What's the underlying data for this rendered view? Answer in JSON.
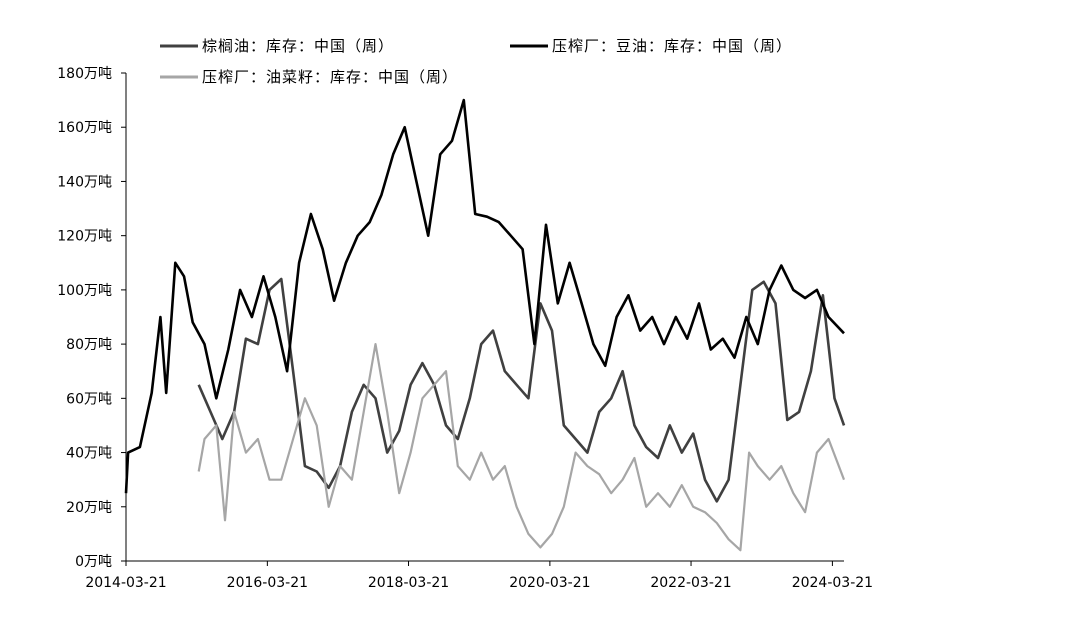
{
  "chart_data": {
    "type": "line",
    "title": "",
    "xlabel": "",
    "ylabel": "",
    "ylim": [
      0,
      180
    ],
    "y_ticks": [
      0,
      20,
      40,
      60,
      80,
      100,
      120,
      140,
      160,
      180
    ],
    "y_unit": "万吨",
    "x_ticks": [
      "2014-03-21",
      "2016-03-21",
      "2018-03-21",
      "2020-03-21",
      "2022-03-21",
      "2024-03-21"
    ],
    "xlim": [
      "2014-03-21",
      "2024-05-20"
    ],
    "grid": false,
    "legend_position": "top",
    "series": [
      {
        "name": "棕榈油：库存：中国（周）",
        "color": "#404040",
        "points": [
          [
            "2015-04-01",
            65
          ],
          [
            "2015-06-01",
            55
          ],
          [
            "2015-08-01",
            45
          ],
          [
            "2015-10-01",
            55
          ],
          [
            "2015-12-01",
            82
          ],
          [
            "2016-02-01",
            80
          ],
          [
            "2016-04-01",
            100
          ],
          [
            "2016-06-01",
            104
          ],
          [
            "2016-08-01",
            70
          ],
          [
            "2016-10-01",
            35
          ],
          [
            "2016-12-01",
            33
          ],
          [
            "2017-02-01",
            27
          ],
          [
            "2017-04-01",
            35
          ],
          [
            "2017-06-01",
            55
          ],
          [
            "2017-08-01",
            65
          ],
          [
            "2017-10-01",
            60
          ],
          [
            "2017-12-01",
            40
          ],
          [
            "2018-02-01",
            48
          ],
          [
            "2018-04-01",
            65
          ],
          [
            "2018-06-01",
            73
          ],
          [
            "2018-08-01",
            65
          ],
          [
            "2018-10-01",
            50
          ],
          [
            "2018-12-01",
            45
          ],
          [
            "2019-02-01",
            60
          ],
          [
            "2019-04-01",
            80
          ],
          [
            "2019-06-01",
            85
          ],
          [
            "2019-08-01",
            70
          ],
          [
            "2019-10-01",
            65
          ],
          [
            "2019-12-01",
            60
          ],
          [
            "2020-02-01",
            95
          ],
          [
            "2020-04-01",
            85
          ],
          [
            "2020-06-01",
            50
          ],
          [
            "2020-08-01",
            45
          ],
          [
            "2020-10-01",
            40
          ],
          [
            "2020-12-01",
            55
          ],
          [
            "2021-02-01",
            60
          ],
          [
            "2021-04-01",
            70
          ],
          [
            "2021-06-01",
            50
          ],
          [
            "2021-08-01",
            42
          ],
          [
            "2021-10-01",
            38
          ],
          [
            "2021-12-01",
            50
          ],
          [
            "2022-02-01",
            40
          ],
          [
            "2022-04-01",
            47
          ],
          [
            "2022-06-01",
            30
          ],
          [
            "2022-08-01",
            22
          ],
          [
            "2022-10-01",
            30
          ],
          [
            "2022-12-01",
            65
          ],
          [
            "2023-02-01",
            100
          ],
          [
            "2023-04-01",
            103
          ],
          [
            "2023-06-01",
            95
          ],
          [
            "2023-08-01",
            52
          ],
          [
            "2023-10-01",
            55
          ],
          [
            "2023-12-01",
            70
          ],
          [
            "2024-02-01",
            98
          ],
          [
            "2024-04-01",
            60
          ],
          [
            "2024-05-20",
            50
          ]
        ]
      },
      {
        "name": "压榨厂：豆油：库存：中国（周）",
        "color": "#000000",
        "points": [
          [
            "2014-03-21",
            25
          ],
          [
            "2014-04-01",
            40
          ],
          [
            "2014-06-01",
            42
          ],
          [
            "2014-08-01",
            62
          ],
          [
            "2014-09-15",
            90
          ],
          [
            "2014-10-15",
            62
          ],
          [
            "2014-12-01",
            110
          ],
          [
            "2015-01-15",
            105
          ],
          [
            "2015-03-01",
            88
          ],
          [
            "2015-05-01",
            80
          ],
          [
            "2015-07-01",
            60
          ],
          [
            "2015-09-01",
            78
          ],
          [
            "2015-11-01",
            100
          ],
          [
            "2016-01-01",
            90
          ],
          [
            "2016-03-01",
            105
          ],
          [
            "2016-05-01",
            90
          ],
          [
            "2016-07-01",
            70
          ],
          [
            "2016-09-01",
            110
          ],
          [
            "2016-11-01",
            128
          ],
          [
            "2017-01-01",
            115
          ],
          [
            "2017-03-01",
            96
          ],
          [
            "2017-05-01",
            110
          ],
          [
            "2017-07-01",
            120
          ],
          [
            "2017-09-01",
            125
          ],
          [
            "2017-11-01",
            135
          ],
          [
            "2018-01-01",
            150
          ],
          [
            "2018-03-01",
            160
          ],
          [
            "2018-05-01",
            140
          ],
          [
            "2018-07-01",
            120
          ],
          [
            "2018-09-01",
            150
          ],
          [
            "2018-11-01",
            155
          ],
          [
            "2019-01-01",
            170
          ],
          [
            "2019-03-01",
            128
          ],
          [
            "2019-05-01",
            127
          ],
          [
            "2019-07-01",
            125
          ],
          [
            "2019-09-01",
            120
          ],
          [
            "2019-11-01",
            115
          ],
          [
            "2020-01-01",
            80
          ],
          [
            "2020-03-01",
            124
          ],
          [
            "2020-05-01",
            95
          ],
          [
            "2020-07-01",
            110
          ],
          [
            "2020-09-01",
            95
          ],
          [
            "2020-11-01",
            80
          ],
          [
            "2021-01-01",
            72
          ],
          [
            "2021-03-01",
            90
          ],
          [
            "2021-05-01",
            98
          ],
          [
            "2021-07-01",
            85
          ],
          [
            "2021-09-01",
            90
          ],
          [
            "2021-11-01",
            80
          ],
          [
            "2022-01-01",
            90
          ],
          [
            "2022-03-01",
            82
          ],
          [
            "2022-05-01",
            95
          ],
          [
            "2022-07-01",
            78
          ],
          [
            "2022-09-01",
            82
          ],
          [
            "2022-11-01",
            75
          ],
          [
            "2023-01-01",
            90
          ],
          [
            "2023-03-01",
            80
          ],
          [
            "2023-05-01",
            100
          ],
          [
            "2023-07-01",
            109
          ],
          [
            "2023-09-01",
            100
          ],
          [
            "2023-11-01",
            97
          ],
          [
            "2024-01-01",
            100
          ],
          [
            "2024-03-01",
            90
          ],
          [
            "2024-05-20",
            84
          ]
        ]
      },
      {
        "name": "压榨厂：油菜籽：库存：中国（周）",
        "color": "#a6a6a6",
        "points": [
          [
            "2015-04-01",
            33
          ],
          [
            "2015-05-01",
            45
          ],
          [
            "2015-07-01",
            50
          ],
          [
            "2015-08-15",
            15
          ],
          [
            "2015-10-01",
            55
          ],
          [
            "2015-12-01",
            40
          ],
          [
            "2016-02-01",
            45
          ],
          [
            "2016-04-01",
            30
          ],
          [
            "2016-06-01",
            30
          ],
          [
            "2016-08-01",
            45
          ],
          [
            "2016-10-01",
            60
          ],
          [
            "2016-12-01",
            50
          ],
          [
            "2017-02-01",
            20
          ],
          [
            "2017-04-01",
            35
          ],
          [
            "2017-06-01",
            30
          ],
          [
            "2017-08-01",
            55
          ],
          [
            "2017-10-01",
            80
          ],
          [
            "2017-12-01",
            55
          ],
          [
            "2018-02-01",
            25
          ],
          [
            "2018-04-01",
            40
          ],
          [
            "2018-06-01",
            60
          ],
          [
            "2018-08-01",
            65
          ],
          [
            "2018-10-01",
            70
          ],
          [
            "2018-12-01",
            35
          ],
          [
            "2019-02-01",
            30
          ],
          [
            "2019-04-01",
            40
          ],
          [
            "2019-06-01",
            30
          ],
          [
            "2019-08-01",
            35
          ],
          [
            "2019-10-01",
            20
          ],
          [
            "2019-12-01",
            10
          ],
          [
            "2020-02-01",
            5
          ],
          [
            "2020-04-01",
            10
          ],
          [
            "2020-06-01",
            20
          ],
          [
            "2020-08-01",
            40
          ],
          [
            "2020-10-01",
            35
          ],
          [
            "2020-12-01",
            32
          ],
          [
            "2021-02-01",
            25
          ],
          [
            "2021-04-01",
            30
          ],
          [
            "2021-06-01",
            38
          ],
          [
            "2021-08-01",
            20
          ],
          [
            "2021-10-01",
            25
          ],
          [
            "2021-12-01",
            20
          ],
          [
            "2022-02-01",
            28
          ],
          [
            "2022-04-01",
            20
          ],
          [
            "2022-06-01",
            18
          ],
          [
            "2022-08-01",
            14
          ],
          [
            "2022-10-01",
            8
          ],
          [
            "2022-12-01",
            4
          ],
          [
            "2023-01-15",
            40
          ],
          [
            "2023-03-01",
            35
          ],
          [
            "2023-05-01",
            30
          ],
          [
            "2023-07-01",
            35
          ],
          [
            "2023-09-01",
            25
          ],
          [
            "2023-11-01",
            18
          ],
          [
            "2024-01-01",
            40
          ],
          [
            "2024-03-01",
            45
          ],
          [
            "2024-05-20",
            30
          ]
        ]
      }
    ]
  }
}
